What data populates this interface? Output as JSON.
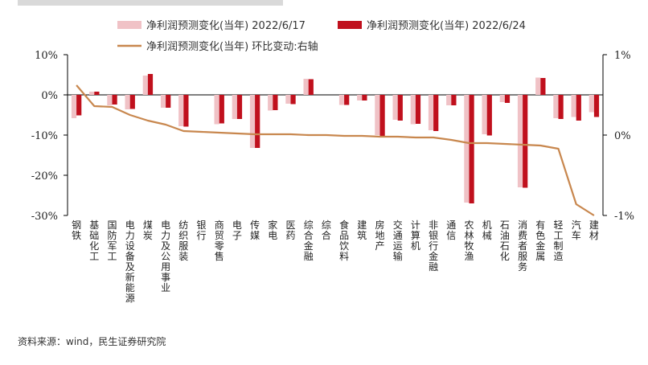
{
  "chart_data": {
    "type": "bar",
    "legend": [
      {
        "name": "净利润预测变化(当年) 2022/6/17",
        "color": "#f0c2c6",
        "kind": "bar"
      },
      {
        "name": "净利润预测变化(当年) 2022/6/24",
        "color": "#c0101d",
        "kind": "bar"
      },
      {
        "name": "净利润预测变化(当年) 环比变动:右轴",
        "color": "#c8874e",
        "kind": "line"
      }
    ],
    "categories": [
      "钢铁",
      "基础化工",
      "国防军工",
      "电力设备及新能源",
      "煤炭",
      "电力及公用事业",
      "纺织服装",
      "银行",
      "商贸零售",
      "电子",
      "传媒",
      "家电",
      "医药",
      "综合金融",
      "综合",
      "食品饮料",
      "建筑",
      "房地产",
      "交通运输",
      "计算机",
      "非银行金融",
      "通信",
      "农林牧渔",
      "机械",
      "石油石化",
      "消费者服务",
      "有色金属",
      "轻工制造",
      "汽车",
      "建材"
    ],
    "series": [
      {
        "name": "净利润预测变化(当年) 2022/6/17",
        "axis": "left",
        "values": [
          -5.8,
          0.8,
          -2.6,
          -3.6,
          4.8,
          -3.2,
          -7.8,
          0,
          -7.3,
          -6.0,
          -13.2,
          -3.9,
          -2.2,
          4.0,
          0,
          -2.5,
          -1.4,
          -10.0,
          -6.2,
          -7.3,
          -8.8,
          -2.6,
          -26.8,
          -9.8,
          -1.8,
          -23.0,
          4.3,
          -5.8,
          -5.5,
          -4.3
        ]
      },
      {
        "name": "净利润预测变化(当年) 2022/6/24",
        "axis": "left",
        "values": [
          -5.1,
          0.8,
          -2.4,
          -3.5,
          5.2,
          -3.2,
          -7.9,
          0,
          -7.1,
          -6.0,
          -13.2,
          -3.8,
          -2.3,
          3.9,
          0,
          -2.5,
          -1.4,
          -10.6,
          -6.4,
          -7.2,
          -9.0,
          -2.6,
          -27.0,
          -10.1,
          -2.0,
          -23.1,
          4.2,
          -6.0,
          -6.4,
          -5.5
        ]
      },
      {
        "name": "净利润预测变化(当年) 环比变动:右轴",
        "axis": "right",
        "type": "line",
        "values": [
          0.62,
          0.36,
          0.35,
          0.25,
          0.18,
          0.13,
          0.05,
          0.04,
          0.03,
          0.02,
          0.01,
          0.01,
          0.01,
          0.0,
          0.0,
          -0.01,
          -0.01,
          -0.02,
          -0.02,
          -0.03,
          -0.03,
          -0.06,
          -0.1,
          -0.1,
          -0.11,
          -0.12,
          -0.13,
          -0.17,
          -0.86,
          -1.0
        ]
      }
    ],
    "yleft": {
      "ticks": [
        "10%",
        "0%",
        "-10%",
        "-20%",
        "-30%"
      ],
      "values": [
        10,
        0,
        -10,
        -20,
        -30
      ],
      "lim": [
        -30,
        10
      ]
    },
    "yright": {
      "ticks": [
        "1%",
        "0%",
        "-1%"
      ],
      "values": [
        1,
        0,
        -1
      ],
      "lim": [
        -1,
        1
      ]
    },
    "legend_position": "top"
  },
  "source": "资料来源：wind，民生证券研究院"
}
